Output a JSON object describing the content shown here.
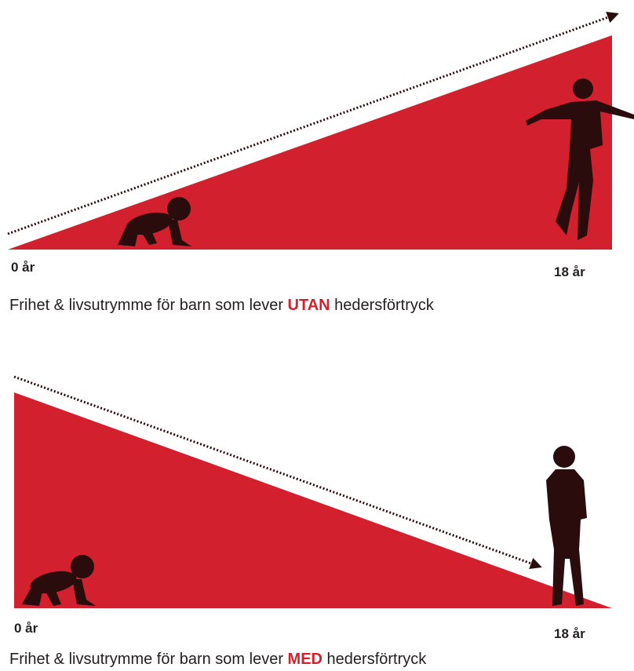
{
  "panels": [
    {
      "start_label": "0 år",
      "end_label": "18 år",
      "caption": {
        "before": "Frihet & livsutrymme för barn som lever ",
        "emphasis": "UTAN",
        "after": " hedersförtryck"
      }
    },
    {
      "start_label": "0 år",
      "end_label": "18 år",
      "caption": {
        "before": "Frihet & livsutrymme för barn som lever ",
        "emphasis": "MED",
        "after": " hedersförtryck"
      }
    }
  ]
}
